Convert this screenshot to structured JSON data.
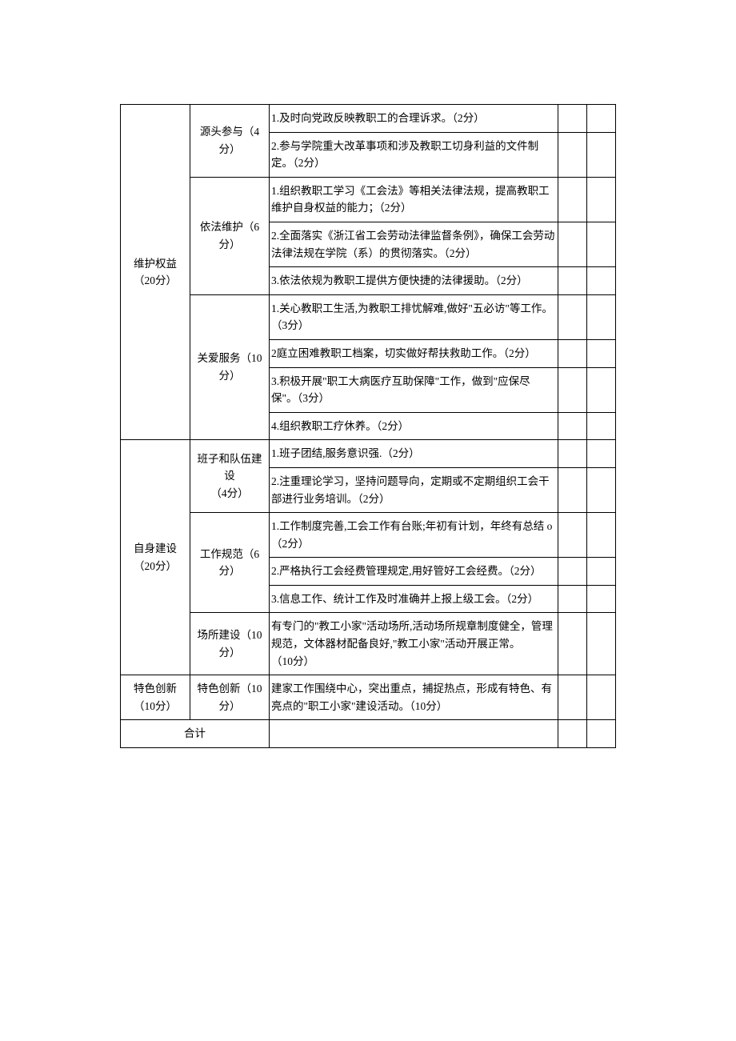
{
  "table": {
    "sections": [
      {
        "category": "维护权益（20分）",
        "subcats": [
          {
            "label": "源头参与（4分）",
            "items": [
              "1.及时向党政反映教职工的合理诉求。（2分）",
              "2.参与学院重大改革事项和涉及教职工切身利益的文件制定。（2分）"
            ]
          },
          {
            "label": "依法维护（6分）",
            "items": [
              "1.组织教职工学习《工会法》等相关法律法规，提高教职工维护自身权益的能力；（2分）",
              "2.全面落实《浙江省工会劳动法律监督条例》，确保工会劳动法律法规在学院（系）的贯彻落实。（2分）",
              "3.依法依规为教职工提供方便快捷的法律援助。（2分）"
            ]
          },
          {
            "label": "关爱服务（10分）",
            "items": [
              "1.关心教职工生活,为教职工排忧解难,做好\"五必访\"等工作。（3分）",
              "2庭立困难教职工档案，切实做好帮扶救助工作。（2分）",
              "3.积极开展\"职工大病医疗互助保障\"工作，做到\"应保尽保\"。（3分）",
              "4.组织教职工疗休养。（2分）"
            ]
          }
        ]
      },
      {
        "category": "自身建设（20分）",
        "subcats": [
          {
            "label": "班子和队伍建设\n（4分）",
            "items": [
              "1.班子团结,服务意识强.（2分）",
              "2.注重理论学习，坚持问题导向，定期或不定期组织工会干部进行业务培训。（2分）"
            ]
          },
          {
            "label": "工作规范（6分）",
            "items": [
              "1.工作制度完善,工会工作有台账;年初有计划，年终有总结 o（2分）",
              "2.严格执行工会经费管理规定,用好管好工会经费。（2分）",
              "3.信息工作、统计工作及时准确并上报上级工会。（2分）"
            ]
          },
          {
            "label": "场所建设（10分）",
            "items": [
              "有专门的\"教工小家\"活动场所,活动场所规章制度健全，管理规范，文体器材配备良好,\"教工小家\"活动开展正常。\n（10分）"
            ]
          }
        ]
      },
      {
        "category": "特色创新（10分）",
        "subcats": [
          {
            "label": "特色创新（10分）",
            "items": [
              "建家工作围绕中心，突出重点，捕捉热点，形成有特色、有亮点的\"职工小家\"建设活动。（10分）"
            ]
          }
        ]
      }
    ],
    "total_label": "合计"
  }
}
